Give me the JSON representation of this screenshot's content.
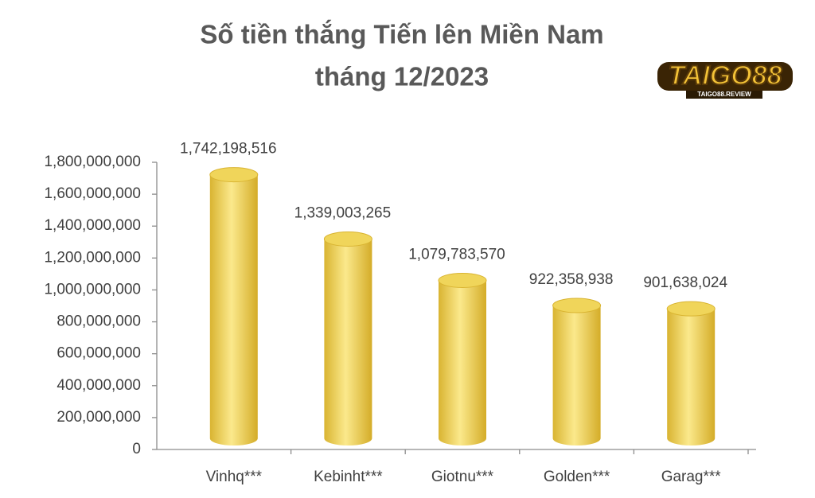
{
  "chart_data": {
    "type": "cylinder",
    "title": [
      "Số tiền thắng Tiến lên Miền Nam",
      "tháng 12/2023"
    ],
    "annotations": [
      "TAIGO88",
      "TAIGO88.REVIEW"
    ],
    "categories": [
      "Vinhq***",
      "Kebinht***",
      "Giotnu***",
      "Golden***",
      "Garag***"
    ],
    "values": [
      1742198516,
      1339003265,
      1079783570,
      922358938,
      901638024
    ],
    "value_labels": [
      "1,742,198,516",
      "1,339,003,265",
      "1,079,783,570",
      "922,358,938",
      "901,638,024"
    ],
    "color": "#f0d55a",
    "ylim": [
      0,
      1800000000
    ],
    "yticks": [
      0,
      {
        "value": 200000000,
        "label": "200,000,000"
      },
      {
        "value": 400000000,
        "label": "400,000,000"
      },
      {
        "value": 600000000,
        "label": "600,000,000"
      },
      {
        "value": 800000000,
        "label": "800,000,000"
      },
      {
        "value": 1000000000,
        "label": "1,000,000,000"
      },
      {
        "value": 1200000000,
        "label": "1,200,000,000"
      },
      {
        "value": 1400000000,
        "label": "1,400,000,000"
      },
      {
        "value": 1600000000,
        "label": "1,600,000,000"
      },
      {
        "value": 1800000000,
        "label": "1,800,000,000"
      }
    ],
    "grid": false
  }
}
